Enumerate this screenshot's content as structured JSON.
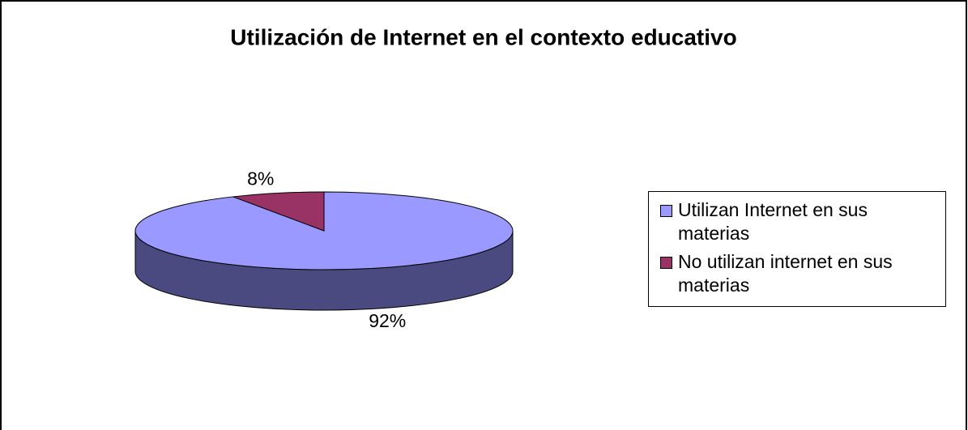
{
  "chart_data": {
    "type": "pie3d",
    "title": "Utilización de Internet en el contexto educativo",
    "categories": [
      "Utilizan Internet en sus materias",
      "No utilizan internet en sus materias"
    ],
    "values": [
      92,
      8
    ],
    "value_labels": [
      "92%",
      "8%"
    ],
    "colors": [
      "#9999ff",
      "#993366"
    ],
    "side_colors": [
      "#4b4a80",
      "#4d1a33"
    ],
    "legend": "right"
  }
}
